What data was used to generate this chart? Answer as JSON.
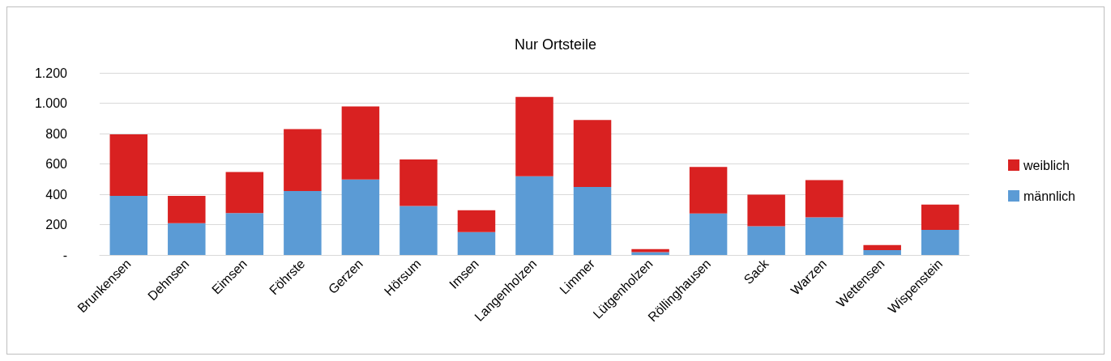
{
  "chart_data": {
    "type": "bar",
    "title": "Nur Ortsteile",
    "stacked": true,
    "categories": [
      "Brunkensen",
      "Dehnsen",
      "Eimsen",
      "Föhrste",
      "Gerzen",
      "Hörsum",
      "Imsen",
      "Langenholzen",
      "Limmer",
      "Lütgenholzen",
      "Röllinghausen",
      "Sack",
      "Warzen",
      "Wettensen",
      "Wispenstein"
    ],
    "series": [
      {
        "name": "männlich",
        "color": "#5b9bd5",
        "values": [
          390,
          210,
          276,
          422,
          498,
          323,
          151,
          519,
          448,
          19,
          274,
          190,
          248,
          32,
          165
        ]
      },
      {
        "name": "weiblich",
        "color": "#d92121",
        "values": [
          405,
          180,
          271,
          408,
          481,
          307,
          144,
          523,
          441,
          20,
          306,
          207,
          246,
          33,
          167
        ]
      }
    ],
    "ylim": [
      0,
      1200
    ],
    "yticks": [
      {
        "value": 0,
        "label": "-"
      },
      200,
      400,
      600,
      800,
      {
        "value": 1000,
        "label": "1.000"
      },
      {
        "value": 1200,
        "label": "1.200"
      }
    ],
    "grid": "y",
    "legend": "right"
  }
}
